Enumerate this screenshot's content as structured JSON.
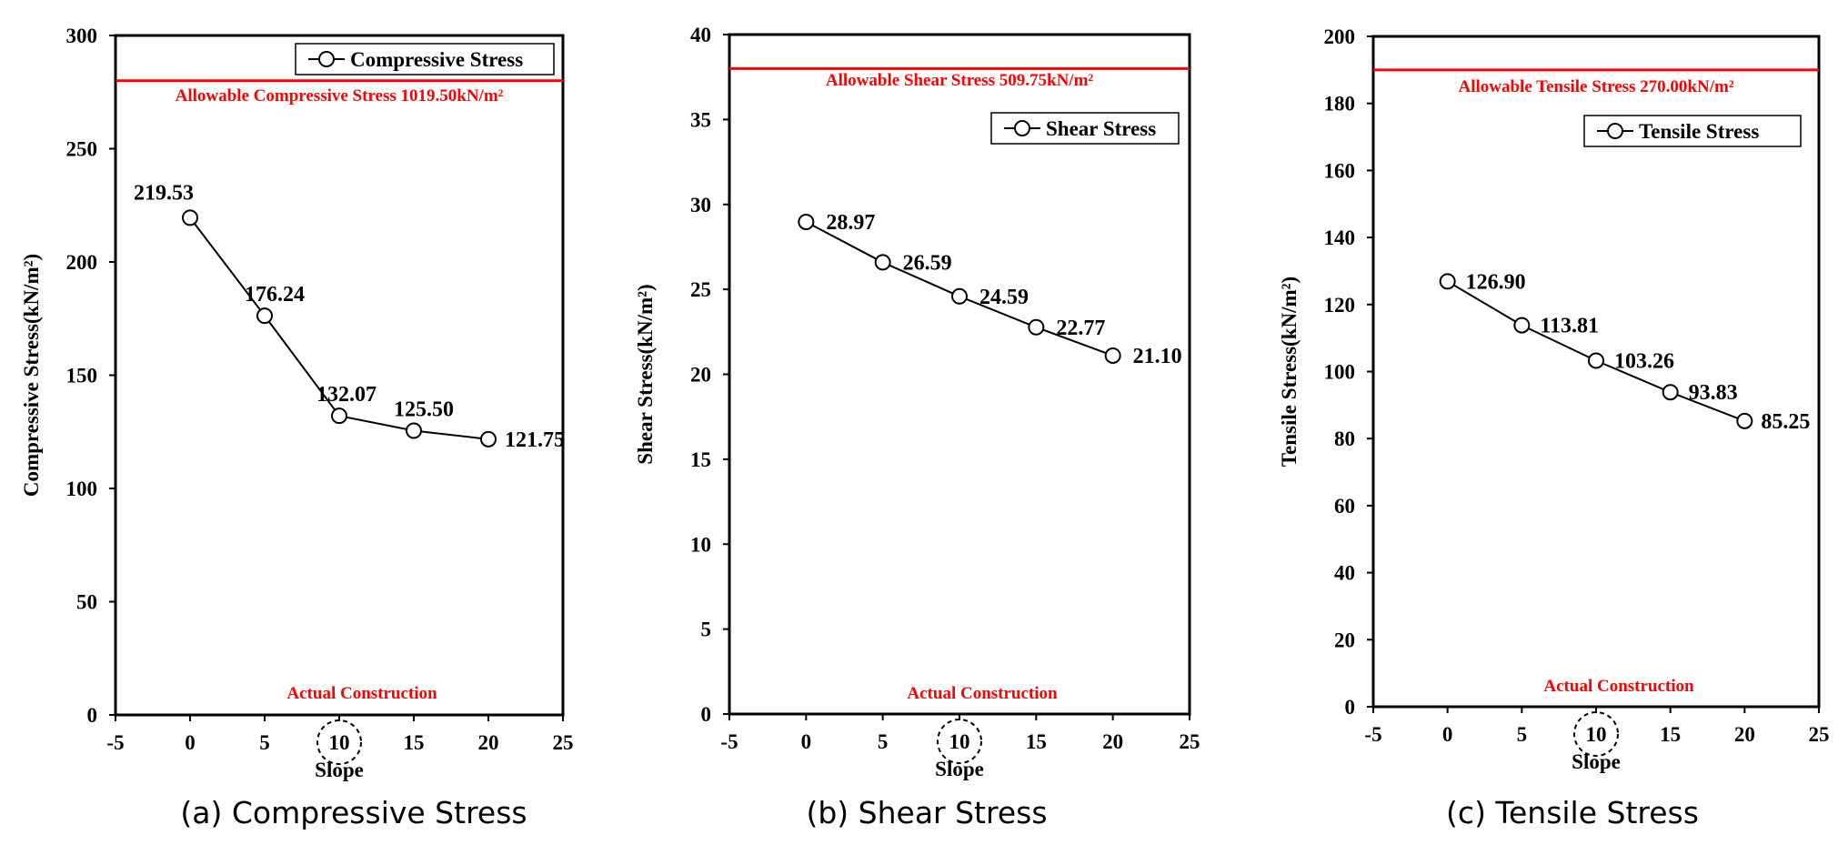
{
  "chart_data": [
    {
      "type": "line",
      "x": [
        0,
        5,
        10,
        15,
        20
      ],
      "series": [
        {
          "name": "Compressive Stress",
          "values": [
            219.53,
            176.24,
            132.07,
            125.5,
            121.75
          ]
        }
      ],
      "data_labels": [
        "219.53",
        "176.24",
        "132.07",
        "125.50",
        "121.75"
      ],
      "xlabel": "Slope",
      "ylabel": "Compressive Stress(kN/m²)",
      "xlim": [
        -5,
        25
      ],
      "ylim": [
        0,
        300
      ],
      "xticks": [
        "-5",
        "0",
        "5",
        "10",
        "15",
        "20",
        "25"
      ],
      "yticks": [
        "0",
        "50",
        "100",
        "150",
        "200",
        "250",
        "300"
      ],
      "allowable_line": {
        "value": 280,
        "label": "Allowable Compressive Stress 1019.50kN/m²",
        "color": "#ff0000"
      },
      "marker_annotation": {
        "x": 10,
        "label": "Actual Construction"
      },
      "legend": "top-right",
      "grid": false,
      "caption": "(a) Compressive Stress"
    },
    {
      "type": "line",
      "x": [
        0,
        5,
        10,
        15,
        20
      ],
      "series": [
        {
          "name": "Shear Stress",
          "values": [
            28.97,
            26.59,
            24.59,
            22.77,
            21.1
          ]
        }
      ],
      "data_labels": [
        "28.97",
        "26.59",
        "24.59",
        "22.77",
        "21.10"
      ],
      "xlabel": "Slope",
      "ylabel": "Shear Stress(kN/m²)",
      "xlim": [
        -5,
        25
      ],
      "ylim": [
        0,
        40
      ],
      "xticks": [
        "-5",
        "0",
        "5",
        "10",
        "15",
        "20",
        "25"
      ],
      "yticks": [
        "0",
        "5",
        "10",
        "15",
        "20",
        "25",
        "30",
        "35",
        "40"
      ],
      "allowable_line": {
        "value": 38,
        "label": "Allowable Shear Stress 509.75kN/m²",
        "color": "#ff0000"
      },
      "marker_annotation": {
        "x": 10,
        "label": "Actual Construction"
      },
      "legend": "top-right",
      "grid": false,
      "caption": "(b) Shear Stress"
    },
    {
      "type": "line",
      "x": [
        0,
        5,
        10,
        15,
        20
      ],
      "series": [
        {
          "name": "Tensile Stress",
          "values": [
            126.9,
            113.81,
            103.26,
            93.83,
            85.25
          ]
        }
      ],
      "data_labels": [
        "126.90",
        "113.81",
        "103.26",
        "93.83",
        "85.25"
      ],
      "xlabel": "Slope",
      "ylabel": "Tensile Stress(kN/m²)",
      "xlim": [
        -5,
        25
      ],
      "ylim": [
        0,
        200
      ],
      "xticks": [
        "-5",
        "0",
        "5",
        "10",
        "15",
        "20",
        "25"
      ],
      "yticks": [
        "0",
        "20",
        "40",
        "60",
        "80",
        "100",
        "120",
        "140",
        "160",
        "180",
        "200"
      ],
      "allowable_line": {
        "value": 190,
        "label": "Allowable Tensile Stress 270.00kN/m²",
        "color": "#ff0000"
      },
      "marker_annotation": {
        "x": 10,
        "label": "Actual Construction"
      },
      "legend": "top-right",
      "grid": false,
      "caption": "(c) Tensile Stress"
    }
  ]
}
